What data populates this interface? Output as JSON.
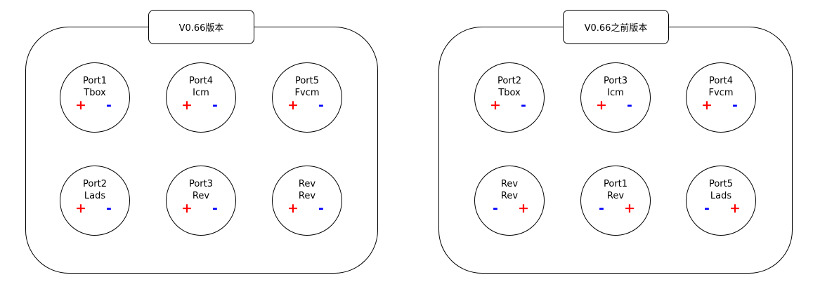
{
  "colors": {
    "plus": "#ff0000",
    "minus": "#0000ff",
    "line": "#000000"
  },
  "left": {
    "title": "V0.66版本",
    "ports": [
      {
        "name": "Port1",
        "sub": "Tbox",
        "a": "+",
        "b": "-"
      },
      {
        "name": "Port4",
        "sub": "Icm",
        "a": "+",
        "b": "-"
      },
      {
        "name": "Port5",
        "sub": "Fvcm",
        "a": "+",
        "b": "-"
      },
      {
        "name": "Port2",
        "sub": "Lads",
        "a": "+",
        "b": "-"
      },
      {
        "name": "Port3",
        "sub": "Rev",
        "a": "+",
        "b": "-"
      },
      {
        "name": "Rev",
        "sub": "Rev",
        "a": "+",
        "b": "-"
      }
    ]
  },
  "right": {
    "title": "V0.66之前版本",
    "ports": [
      {
        "name": "Port2",
        "sub": "Tbox",
        "a": "+",
        "b": "-"
      },
      {
        "name": "Port3",
        "sub": "Icm",
        "a": "+",
        "b": "-"
      },
      {
        "name": "Port4",
        "sub": "Fvcm",
        "a": "+",
        "b": "-"
      },
      {
        "name": "Rev",
        "sub": "Rev",
        "a": "-",
        "b": "+"
      },
      {
        "name": "Port1",
        "sub": "Rev",
        "a": "-",
        "b": "+"
      },
      {
        "name": "Port5",
        "sub": "Lads",
        "a": "-",
        "b": "+"
      }
    ]
  }
}
